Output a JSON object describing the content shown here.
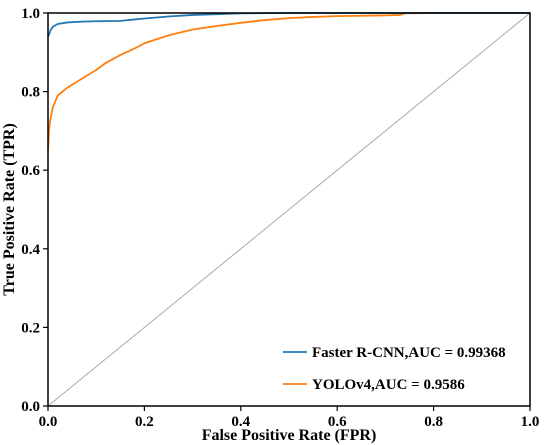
{
  "chart_data": {
    "type": "line",
    "xlabel": "False Positive Rate (FPR)",
    "ylabel": "True Positive Rate (TPR)",
    "xlim": [
      0,
      1
    ],
    "ylim": [
      0,
      1
    ],
    "xticks": [
      "0.0",
      "0.2",
      "0.4",
      "0.6",
      "0.8",
      "1.0"
    ],
    "yticks": [
      "0.0",
      "0.2",
      "0.4",
      "0.6",
      "0.8",
      "1.0"
    ],
    "grid": false,
    "legend_position": "bottom-right",
    "series": [
      {
        "name": "Faster R-CNN,AUC = 0.99368",
        "color": "#1f77b4",
        "points": [
          [
            0.0,
            0.94
          ],
          [
            0.002,
            0.945
          ],
          [
            0.005,
            0.955
          ],
          [
            0.01,
            0.965
          ],
          [
            0.02,
            0.972
          ],
          [
            0.04,
            0.976
          ],
          [
            0.07,
            0.978
          ],
          [
            0.1,
            0.979
          ],
          [
            0.15,
            0.98
          ],
          [
            0.2,
            0.986
          ],
          [
            0.25,
            0.991
          ],
          [
            0.3,
            0.995
          ],
          [
            0.35,
            0.997
          ],
          [
            0.4,
            0.999
          ],
          [
            0.5,
            1.0
          ],
          [
            0.7,
            1.0
          ],
          [
            1.0,
            1.0
          ]
        ]
      },
      {
        "name": "YOLOv4,AUC = 0.9586",
        "color": "#ff7f0e",
        "points": [
          [
            0.0,
            0.65
          ],
          [
            0.002,
            0.7
          ],
          [
            0.005,
            0.73
          ],
          [
            0.01,
            0.76
          ],
          [
            0.02,
            0.79
          ],
          [
            0.04,
            0.81
          ],
          [
            0.06,
            0.825
          ],
          [
            0.08,
            0.84
          ],
          [
            0.1,
            0.855
          ],
          [
            0.12,
            0.873
          ],
          [
            0.15,
            0.893
          ],
          [
            0.18,
            0.91
          ],
          [
            0.2,
            0.923
          ],
          [
            0.25,
            0.943
          ],
          [
            0.3,
            0.958
          ],
          [
            0.35,
            0.967
          ],
          [
            0.4,
            0.975
          ],
          [
            0.45,
            0.982
          ],
          [
            0.5,
            0.987
          ],
          [
            0.55,
            0.99
          ],
          [
            0.6,
            0.992
          ],
          [
            0.7,
            0.994
          ],
          [
            0.73,
            0.995
          ],
          [
            0.74,
            0.999
          ],
          [
            0.8,
            1.0
          ],
          [
            1.0,
            1.0
          ]
        ]
      },
      {
        "name": "",
        "color": "#aaaaaa",
        "points": [
          [
            0.0,
            0.0
          ],
          [
            1.0,
            1.0
          ]
        ]
      }
    ]
  }
}
